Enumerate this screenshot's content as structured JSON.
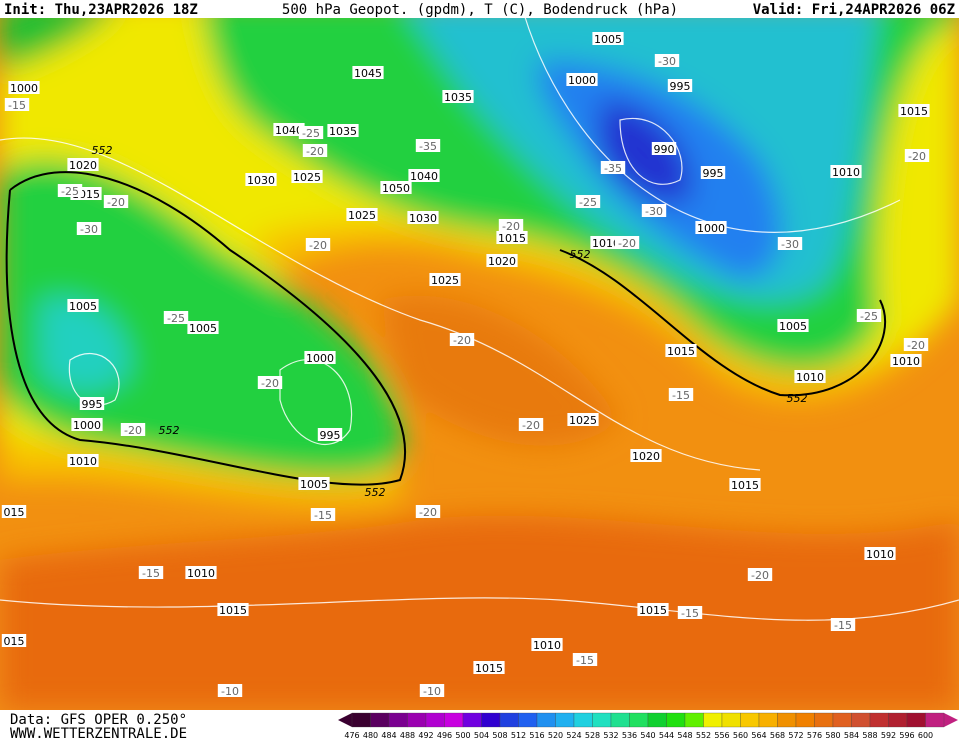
{
  "header": {
    "init": "Init: Thu,23APR2026 18Z",
    "title": "500 hPa Geopot. (gpdm), T (C), Bodendruck (hPa)",
    "valid": "Valid: Fri,24APR2026 06Z"
  },
  "footer": {
    "data": "Data: GFS OPER 0.250°",
    "site": "WWW.WETTERZENTRALE.DE"
  },
  "colorbar": {
    "values": [
      476,
      480,
      484,
      488,
      492,
      496,
      500,
      504,
      508,
      512,
      516,
      520,
      524,
      528,
      532,
      536,
      540,
      544,
      548,
      552,
      556,
      560,
      564,
      568,
      572,
      576,
      580,
      584,
      588,
      592,
      596,
      600
    ],
    "colors": [
      "#3a0030",
      "#5a0060",
      "#7a0090",
      "#9a00b0",
      "#b000d0",
      "#c800e0",
      "#7000e0",
      "#3000d0",
      "#2040e0",
      "#2060f0",
      "#2090f0",
      "#20b0f0",
      "#20d0e0",
      "#20e0c0",
      "#20e090",
      "#20e060",
      "#10d030",
      "#20e010",
      "#60f000",
      "#f0f000",
      "#f0e000",
      "#f8c800",
      "#f8b000",
      "#f09000",
      "#f08000",
      "#e87010",
      "#e06020",
      "#d05030",
      "#c03030",
      "#b02030",
      "#a01030",
      "#c02080"
    ]
  },
  "map": {
    "pressure_labels": [
      "1000",
      "1045",
      "1035",
      "1005",
      "1000",
      "995",
      "1040",
      "1035",
      "990",
      "995",
      "1015",
      "1010",
      "1020",
      "1015",
      "1030",
      "1025",
      "1050",
      "1040",
      "1025",
      "1030",
      "1015",
      "1010",
      "1000",
      "1020",
      "1025",
      "1005",
      "1005",
      "1015",
      "1005",
      "1010",
      "1000",
      "1010",
      "995",
      "995",
      "1000",
      "1025",
      "1010",
      "1020",
      "1005",
      "1015",
      "015",
      "1010",
      "1010",
      "1015",
      "1015",
      "1010",
      "1015",
      "015"
    ],
    "temperature_labels": [
      "-15",
      "-30",
      "-25",
      "-20",
      "-35",
      "-20",
      "-25",
      "-20",
      "-35",
      "-25",
      "-30",
      "-30",
      "-20",
      "-20",
      "-20",
      "-30",
      "-25",
      "-25",
      "-20",
      "-20",
      "-20",
      "-15",
      "-20",
      "-20",
      "-15",
      "-20",
      "-15",
      "-20",
      "-15",
      "-15",
      "-15",
      "-10",
      "-10"
    ],
    "contour_552_labels": [
      "552",
      "552",
      "552",
      "552",
      "552"
    ]
  }
}
